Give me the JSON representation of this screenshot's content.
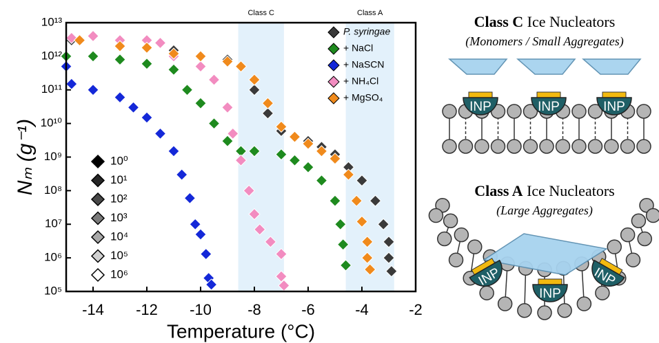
{
  "chart_data": {
    "type": "scatter",
    "x_label": "Temperature (°C)",
    "y_label": "Nₘ (g⁻¹)",
    "xlim": [
      -15,
      -2
    ],
    "xticks": [
      -14,
      -12,
      -10,
      -8,
      -6,
      -4,
      -2
    ],
    "ylim": [
      100000,
      10000000000000
    ],
    "log_y": true,
    "yticks": [
      {
        "value": 100000,
        "label": "10⁵"
      },
      {
        "value": 1000000,
        "label": "10⁶"
      },
      {
        "value": 10000000,
        "label": "10⁷"
      },
      {
        "value": 100000000,
        "label": "10⁸"
      },
      {
        "value": 1000000000,
        "label": "10⁹"
      },
      {
        "value": 10000000000,
        "label": "10¹⁰"
      },
      {
        "value": 100000000000,
        "label": "10¹¹"
      },
      {
        "value": 1000000000000,
        "label": "10¹²"
      },
      {
        "value": 10000000000000,
        "label": "10¹³"
      }
    ],
    "regions": [
      {
        "label": "Class C",
        "x": [
          -8.6,
          -6.9
        ],
        "color": "#e3f1fb"
      },
      {
        "label": "Class A",
        "x": [
          -4.6,
          -2.8
        ],
        "color": "#e3f1fb"
      }
    ],
    "series": [
      {
        "name": "P. syringae",
        "color": "#3a3a3a",
        "x": [
          -14.8,
          -13,
          -11,
          -10,
          -9,
          -8.5,
          -8,
          -7.5,
          -7,
          -6.5,
          -6,
          -5.5,
          -5,
          -4.5,
          -4,
          -3.5,
          -3.2,
          -3,
          -3,
          -2.9
        ],
        "values": [
          3000000000000,
          2000000000000,
          1500000000000,
          1000000000000,
          800000000000,
          500000000000,
          100000000000,
          20000000000,
          6000000000,
          4000000000,
          3000000000,
          2000000000,
          1200000000,
          500000000,
          200000000,
          50000000,
          10000000,
          3000000,
          1000000,
          400000
        ]
      },
      {
        "name": "+ NaCl",
        "color": "#1e8a1e",
        "x": [
          -15,
          -14,
          -13,
          -12,
          -11,
          -10.5,
          -10,
          -9.5,
          -9,
          -8.5,
          -8,
          -7,
          -6.5,
          -6,
          -5.5,
          -5,
          -4.8,
          -4.7,
          -4.6
        ],
        "values": [
          1000000000000,
          1000000000000,
          800000000000,
          600000000000,
          400000000000,
          100000000000,
          40000000000,
          10000000000,
          3000000000,
          1500000000,
          1500000000,
          1200000000,
          800000000,
          500000000,
          200000000,
          50000000,
          10000000,
          2500000,
          600000
        ]
      },
      {
        "name": "+ NaSCN",
        "color": "#1428d8",
        "x": [
          -15,
          -14.8,
          -14,
          -13,
          -12.5,
          -12,
          -11.5,
          -11,
          -10.7,
          -10.4,
          -10.2,
          -10,
          -9.8,
          -9.7,
          -9.6
        ],
        "values": [
          500000000000,
          150000000000,
          100000000000,
          60000000000,
          30000000000,
          15000000000,
          5000000000,
          1500000000,
          300000000,
          60000000,
          10000000,
          5000000,
          1300000,
          250000,
          160000
        ]
      },
      {
        "name": "+ NH₄Cl",
        "color": "#f28cc0",
        "x": [
          -14.8,
          -14,
          -13,
          -12,
          -11.5,
          -11,
          -10,
          -9.5,
          -9,
          -8.8,
          -8.5,
          -8.2,
          -8,
          -7.8,
          -7.4,
          -7,
          -7,
          -6.9
        ],
        "values": [
          3500000000000,
          4000000000000,
          3000000000000,
          3000000000000,
          2500000000000,
          1000000000000,
          500000000000,
          200000000000,
          30000000000,
          5000000000,
          800000000,
          100000000,
          20000000,
          7000000,
          3000000,
          1300000,
          280000,
          150000
        ]
      },
      {
        "name": "+ MgSO₄",
        "color": "#f08a1c",
        "x": [
          -14.5,
          -13,
          -12,
          -11,
          -10,
          -9,
          -8.5,
          -8,
          -7.5,
          -7,
          -6.5,
          -6,
          -5.5,
          -5,
          -4.5,
          -4.2,
          -4,
          -3.8,
          -3.8,
          -3.7
        ],
        "values": [
          3000000000000,
          2000000000000,
          1800000000000,
          1200000000000,
          1000000000000,
          700000000000,
          500000000000,
          200000000000,
          40000000000,
          8000000000,
          4000000000,
          2500000000,
          1500000000,
          900000000,
          300000000,
          50000000,
          12000000,
          3000000,
          1000000,
          450000
        ]
      }
    ],
    "dilution_legend": [
      {
        "label": "10⁰",
        "color": "#000000"
      },
      {
        "label": "10¹",
        "color": "#262626"
      },
      {
        "label": "10²",
        "color": "#484848"
      },
      {
        "label": "10³",
        "color": "#7a7a7a"
      },
      {
        "label": "10⁴",
        "color": "#a8a8a8"
      },
      {
        "label": "10⁵",
        "color": "#d0d0d0"
      },
      {
        "label": "10⁶",
        "color": "#ffffff"
      }
    ]
  },
  "diagrams": {
    "class_c": {
      "title_bold": "Class C",
      "title_rest": "Ice Nucleators",
      "subtitle": "(Monomers / Small Aggregates)"
    },
    "class_a": {
      "title_bold": "Class A",
      "title_rest": "Ice Nucleators",
      "subtitle": "(Large Aggregates)"
    },
    "inp_label": "INP"
  }
}
